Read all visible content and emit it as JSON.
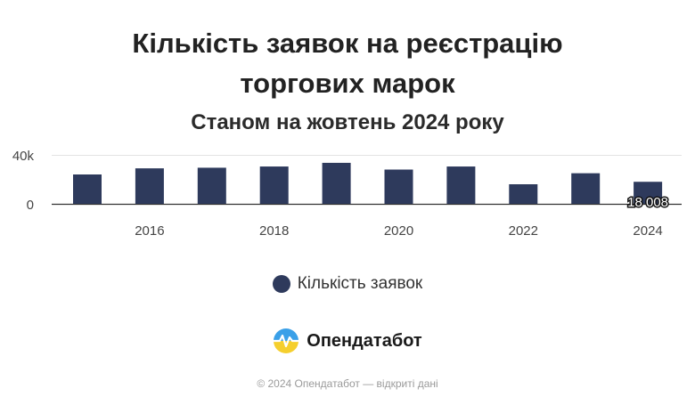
{
  "header": {
    "title_line1": "Кількість заявок на реєстрацію",
    "title_line2": "торгових марок",
    "subtitle": "Станом на жовтень 2024 року"
  },
  "legend": {
    "label": "Кількість заявок",
    "color": "#2e3a5c"
  },
  "brand": {
    "name": "Опендатабот"
  },
  "footer": {
    "text": "© 2024 Опендатабот — відкриті дані"
  },
  "chart_data": {
    "type": "bar",
    "categories": [
      "2015",
      "2016",
      "2017",
      "2018",
      "2019",
      "2020",
      "2021",
      "2022",
      "2023",
      "2024"
    ],
    "x_tick_labels": [
      "2016",
      "2018",
      "2020",
      "2022",
      "2024"
    ],
    "series": [
      {
        "name": "Кількість заявок",
        "values": [
          24000,
          29000,
          29500,
          30500,
          33500,
          28000,
          30500,
          16000,
          25000,
          18008
        ]
      }
    ],
    "y_tick_labels": [
      "0",
      "40k"
    ],
    "ylim": [
      0,
      40000
    ],
    "data_labels": [
      {
        "category": "2024",
        "text": "18 008"
      }
    ],
    "grid": true,
    "legend_position": "bottom",
    "bar_color": "#2e3a5c"
  }
}
